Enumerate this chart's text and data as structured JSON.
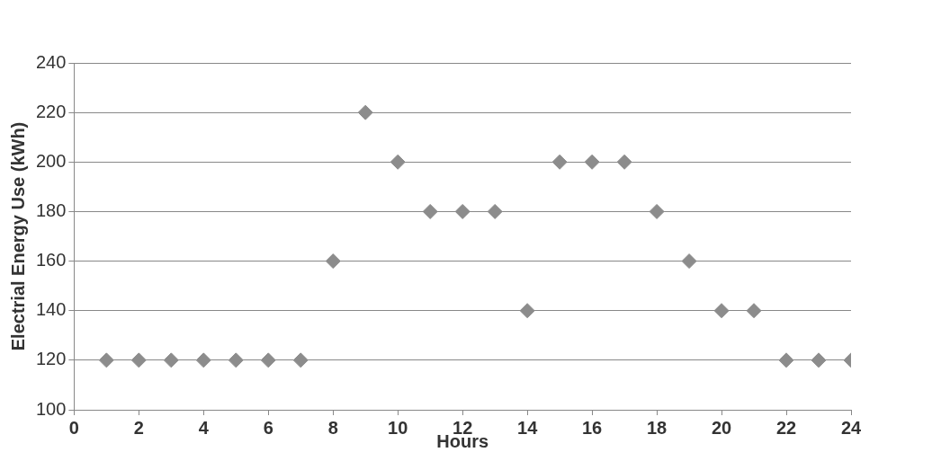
{
  "chart_data": {
    "type": "scatter",
    "xlabel": "Hours",
    "ylabel": "Electrial Energy Use (kWh)",
    "x": [
      1,
      2,
      3,
      4,
      5,
      6,
      7,
      8,
      9,
      10,
      11,
      12,
      13,
      14,
      15,
      16,
      17,
      18,
      19,
      20,
      21,
      22,
      23,
      24
    ],
    "series": [
      {
        "color": "#8c8c8c",
        "values": [
          120,
          120,
          120,
          120,
          120,
          120,
          120,
          160,
          220,
          200,
          180,
          180,
          180,
          140,
          200,
          200,
          200,
          180,
          160,
          140,
          140,
          120,
          120,
          120
        ]
      }
    ],
    "xlim": [
      0,
      24
    ],
    "xticks": [
      0,
      2,
      4,
      6,
      8,
      10,
      12,
      14,
      16,
      18,
      20,
      22,
      24
    ],
    "ylim": [
      100,
      240
    ],
    "yticks": [
      100,
      120,
      140,
      160,
      180,
      200,
      220,
      240
    ],
    "grid": "y",
    "legend": false,
    "marker": "diamond"
  }
}
